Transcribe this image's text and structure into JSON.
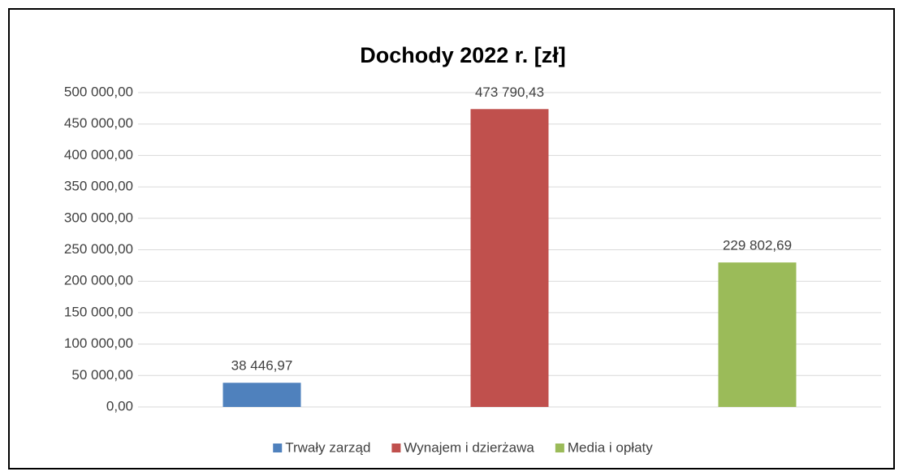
{
  "chart_data": {
    "type": "bar",
    "title": "Dochody 2022 r. [zł]",
    "categories": [
      null
    ],
    "series": [
      {
        "name": "Trwały zarząd",
        "color": "#4f81bd",
        "values": [
          38446.97
        ],
        "value_labels": [
          "38 446,97"
        ]
      },
      {
        "name": "Wynajem i dzierżawa",
        "color": "#c0504d",
        "values": [
          473790.43
        ],
        "value_labels": [
          "473 790,43"
        ]
      },
      {
        "name": "Media i opłaty",
        "color": "#9bbb59",
        "values": [
          229802.69
        ],
        "value_labels": [
          "229 802,69"
        ]
      }
    ],
    "ylim": [
      0,
      500000
    ],
    "yticks": [
      {
        "value": 0,
        "label": "0,00"
      },
      {
        "value": 50000,
        "label": "50 000,00"
      },
      {
        "value": 100000,
        "label": "100 000,00"
      },
      {
        "value": 150000,
        "label": "150 000,00"
      },
      {
        "value": 200000,
        "label": "200 000,00"
      },
      {
        "value": 250000,
        "label": "250 000,00"
      },
      {
        "value": 300000,
        "label": "300 000,00"
      },
      {
        "value": 350000,
        "label": "350 000,00"
      },
      {
        "value": 400000,
        "label": "400 000,00"
      },
      {
        "value": 450000,
        "label": "450 000,00"
      },
      {
        "value": 500000,
        "label": "500 000,00"
      }
    ],
    "grid": true,
    "legend": "bottom"
  }
}
